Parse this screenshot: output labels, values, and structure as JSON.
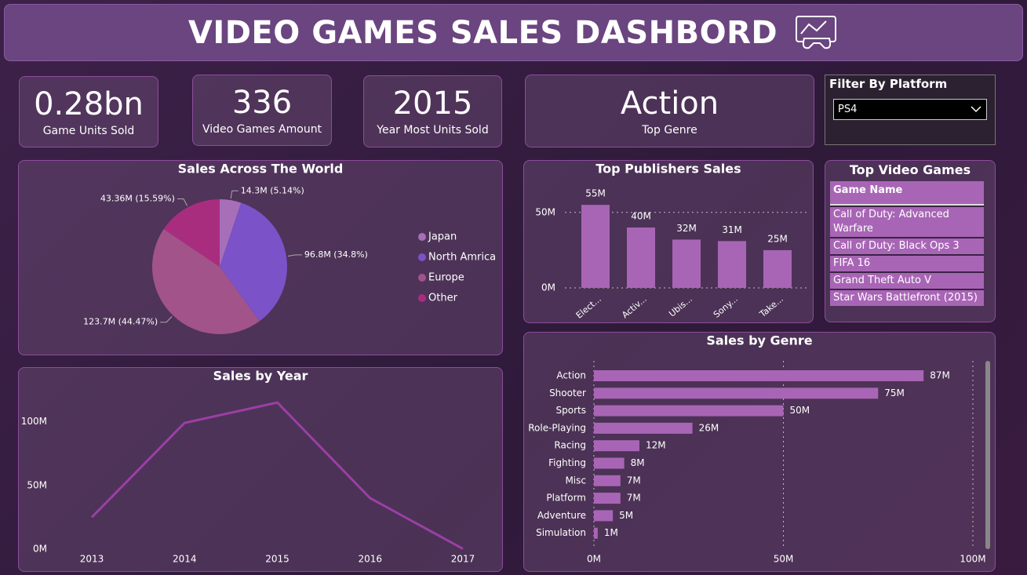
{
  "header": {
    "title": "VIDEO GAMES SALES DASHBORD"
  },
  "kpis": [
    {
      "value": "0.28bn",
      "label": "Game Units Sold"
    },
    {
      "value": 336,
      "label": "Video Games Amount"
    },
    {
      "value": 2015,
      "label": "Year Most Units Sold"
    },
    {
      "value": "Action",
      "label": "Top Genre"
    }
  ],
  "filter": {
    "label": "Filter By Platform",
    "selected": "PS4"
  },
  "table": {
    "title": "Top Video Games",
    "header": "Game Name",
    "rows": [
      "Call of Duty: Advanced Warfare",
      "Call of Duty: Black Ops 3",
      "FIFA 16",
      "Grand Theft Auto V",
      "Star Wars Battlefront (2015)"
    ]
  },
  "chart_data": [
    {
      "type": "pie",
      "title": "Sales Across The World",
      "categories": [
        "Japan",
        "North Amrica",
        "Europe",
        "Other"
      ],
      "values": [
        14.3,
        96.8,
        123.7,
        43.36
      ],
      "value_labels": [
        "14.3M (5.14%)",
        "96.8M (34.8%)",
        "123.7M (44.47%)",
        "43.36M (15.59%)"
      ],
      "colors": [
        "#a66fb8",
        "#7b52c7",
        "#a2538a",
        "#a92d7f"
      ],
      "legend": "right"
    },
    {
      "type": "line",
      "title": "Sales by Year",
      "x": [
        2013,
        2014,
        2015,
        2016,
        2017
      ],
      "values": [
        25,
        99,
        115,
        40,
        0.3
      ],
      "color": "#9b3fa6",
      "xlim": [
        2013,
        2017
      ],
      "xticks": [
        2013,
        2014,
        2015,
        2016,
        2017
      ],
      "ylim": [
        0,
        120
      ],
      "yticks": [
        {
          "value": 0,
          "label": "0M"
        },
        {
          "value": 50,
          "label": "50M"
        },
        {
          "value": 100,
          "label": "100M"
        }
      ],
      "grid": false
    },
    {
      "type": "bar",
      "title": "Top Publishers Sales",
      "categories": [
        "Elect...",
        "Activ...",
        "Ubis...",
        "Sony...",
        "Take..."
      ],
      "values": [
        55,
        40,
        32,
        31,
        25
      ],
      "value_labels": [
        "55M",
        "40M",
        "32M",
        "31M",
        "25M"
      ],
      "color": "#a865b5",
      "ylim": [
        0,
        66
      ],
      "yticks": [
        {
          "value": 0,
          "label": "0M"
        },
        {
          "value": 50,
          "label": "50M"
        }
      ],
      "grid": true
    },
    {
      "type": "hbar",
      "title": "Sales by Genre",
      "categories": [
        "Action",
        "Shooter",
        "Sports",
        "Role-Playing",
        "Racing",
        "Fighting",
        "Misc",
        "Platform",
        "Adventure",
        "Simulation"
      ],
      "values": [
        87,
        75,
        50,
        26,
        12,
        8,
        7,
        7,
        5,
        1
      ],
      "value_labels": [
        "87M",
        "75M",
        "50M",
        "26M",
        "12M",
        "8M",
        "7M",
        "7M",
        "5M",
        "1M"
      ],
      "color": "#a865b5",
      "xlim": [
        0,
        100
      ],
      "xticks": [
        {
          "value": 0,
          "label": "0M"
        },
        {
          "value": 50,
          "label": "50M"
        },
        {
          "value": 100,
          "label": "100M"
        }
      ],
      "grid": true
    }
  ]
}
